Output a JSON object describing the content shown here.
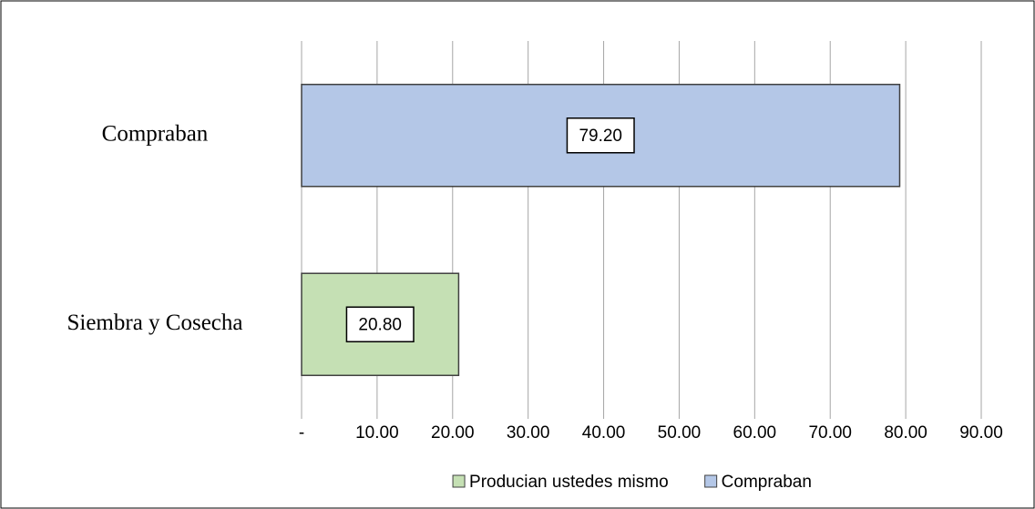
{
  "chart_data": {
    "type": "bar",
    "orientation": "horizontal",
    "stacked": true,
    "categories": [
      "Compraban",
      "Siembra y Cosecha"
    ],
    "series": [
      {
        "name": "Producian ustedes mismo",
        "color": "#c5e0b4",
        "values": [
          null,
          20.8
        ],
        "value_labels": [
          null,
          "20.80"
        ]
      },
      {
        "name": "Compraban",
        "color": "#b4c7e7",
        "values": [
          79.2,
          null
        ],
        "value_labels": [
          "79.20",
          null
        ]
      }
    ],
    "xlim": [
      0,
      90
    ],
    "xticks": [
      {
        "value": 0,
        "label": "-"
      },
      {
        "value": 10,
        "label": "10.00"
      },
      {
        "value": 20,
        "label": "20.00"
      },
      {
        "value": 30,
        "label": "30.00"
      },
      {
        "value": 40,
        "label": "40.00"
      },
      {
        "value": 50,
        "label": "50.00"
      },
      {
        "value": 60,
        "label": "60.00"
      },
      {
        "value": 70,
        "label": "70.00"
      },
      {
        "value": 80,
        "label": "80.00"
      },
      {
        "value": 90,
        "label": "90.00"
      }
    ],
    "grid": true,
    "legend": "bottom"
  }
}
